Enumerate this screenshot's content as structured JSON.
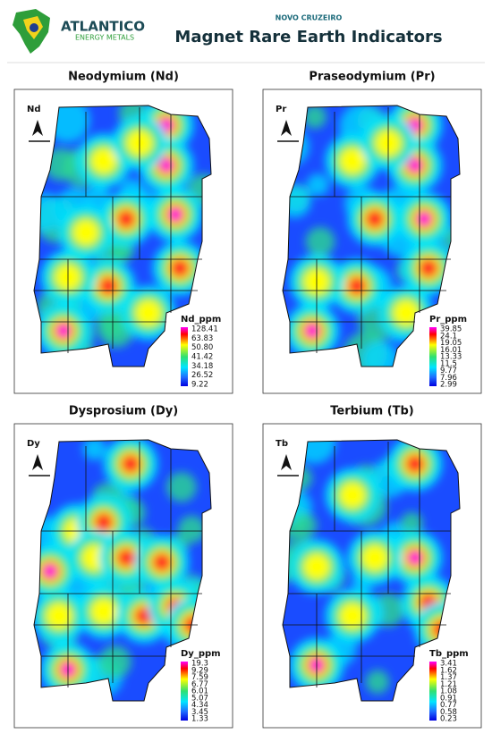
{
  "header": {
    "company": "ATLANTICO",
    "company_sub": "ENERGY METALS",
    "project": "NOVO CRUZEIRO",
    "title": "Magnet Rare Earth Indicators"
  },
  "panels": [
    {
      "title": "Neodymium (Nd)",
      "label": "Nd",
      "legend_title": "Nd_ppm",
      "legend_labels": [
        "128.41",
        "63.83",
        "50.80",
        "41.42",
        "34.18",
        "26.52",
        "9.22"
      ]
    },
    {
      "title": "Praseodymium (Pr)",
      "label": "Pr",
      "legend_title": "Pr_ppm",
      "legend_labels": [
        "39.85",
        "24.1",
        "19.05",
        "16.01",
        "13.33",
        "11.5",
        "9.77",
        "7.96",
        "2.99"
      ]
    },
    {
      "title": "Dysprosium (Dy)",
      "label": "Dy",
      "legend_title": "Dy_ppm",
      "legend_labels": [
        "19.3",
        "9.29",
        "7.59",
        "6.77",
        "6.01",
        "5.07",
        "4.34",
        "3.45",
        "1.33"
      ]
    },
    {
      "title": "Terbium (Tb)",
      "label": "Tb",
      "legend_title": "Tb_ppm",
      "legend_labels": [
        "3.41",
        "1.62",
        "1.37",
        "1.21",
        "1.08",
        "0.91",
        "0.77",
        "0.58",
        "0.23"
      ]
    }
  ]
}
